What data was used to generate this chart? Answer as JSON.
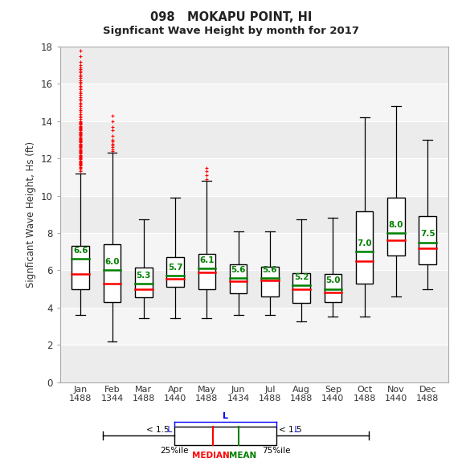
{
  "title_line1": "098   MOKAPU POINT, HI",
  "title_line2": "Signficant Wave Height by month for 2017",
  "ylabel": "Signficant Wave Height, Hs (ft)",
  "months": [
    "Jan",
    "Feb",
    "Mar",
    "Apr",
    "May",
    "Jun",
    "Jul",
    "Aug",
    "Sep",
    "Oct",
    "Nov",
    "Dec"
  ],
  "counts": [
    1488,
    1344,
    1488,
    1440,
    1488,
    1434,
    1488,
    1488,
    1440,
    1488,
    1440,
    1488
  ],
  "ylim": [
    0,
    18
  ],
  "yticks": [
    0,
    2,
    4,
    6,
    8,
    10,
    12,
    14,
    16,
    18
  ],
  "means": [
    6.6,
    6.0,
    5.3,
    5.7,
    6.1,
    5.6,
    5.6,
    5.2,
    5.0,
    7.0,
    8.0,
    7.5
  ],
  "medians": [
    5.8,
    5.3,
    5.0,
    5.55,
    5.9,
    5.4,
    5.45,
    5.0,
    4.8,
    6.5,
    7.6,
    7.2
  ],
  "q1": [
    5.0,
    4.3,
    4.55,
    5.1,
    5.0,
    4.75,
    4.6,
    4.25,
    4.3,
    5.3,
    6.8,
    6.3
  ],
  "q3": [
    7.3,
    7.4,
    6.15,
    6.7,
    6.9,
    6.3,
    6.2,
    5.85,
    5.8,
    9.15,
    9.9,
    8.9
  ],
  "whisker_low": [
    3.6,
    2.2,
    3.45,
    3.45,
    3.45,
    3.6,
    3.6,
    3.25,
    3.5,
    3.5,
    4.6,
    5.0
  ],
  "whisker_high": [
    11.2,
    12.3,
    8.75,
    9.9,
    10.8,
    8.1,
    8.1,
    8.75,
    8.8,
    14.2,
    14.8,
    13.0
  ],
  "outliers_jan": [
    11.3,
    11.4,
    11.5,
    11.55,
    11.6,
    11.65,
    11.7,
    11.75,
    11.8,
    11.85,
    11.9,
    11.95,
    12.0,
    12.05,
    12.1,
    12.15,
    12.2,
    12.25,
    12.3,
    12.35,
    12.4,
    12.45,
    12.5,
    12.55,
    12.6,
    12.65,
    12.7,
    12.75,
    12.8,
    12.85,
    12.9,
    12.95,
    13.0,
    13.05,
    13.1,
    13.15,
    13.2,
    13.25,
    13.3,
    13.35,
    13.4,
    13.45,
    13.5,
    13.55,
    13.6,
    13.65,
    13.7,
    13.75,
    13.8,
    13.85,
    13.9,
    13.95,
    14.0,
    14.1,
    14.2,
    14.3,
    14.4,
    14.5,
    14.6,
    14.7,
    14.8,
    14.9,
    15.0,
    15.1,
    15.2,
    15.3,
    15.4,
    15.5,
    15.6,
    15.7,
    15.8,
    15.9,
    16.0,
    16.1,
    16.2,
    16.3,
    16.4,
    16.5,
    16.6,
    16.7,
    16.8,
    16.9,
    17.0,
    17.2,
    17.5,
    17.8
  ],
  "outliers_feb": [
    12.4,
    12.5,
    12.6,
    12.7,
    12.8,
    12.9,
    13.0,
    13.2,
    13.5,
    13.7,
    14.0,
    14.3
  ],
  "outliers_may": [
    10.9,
    11.1,
    11.3,
    11.5
  ],
  "band_colors": [
    "#ececec",
    "#f5f5f5"
  ],
  "box_color": "#ffffff",
  "box_edge_color": "#000000",
  "median_color": "#ff0000",
  "mean_color": "#008000",
  "whisker_color": "#000000",
  "outlier_color": "#ff0000",
  "background_color": "#ffffff"
}
